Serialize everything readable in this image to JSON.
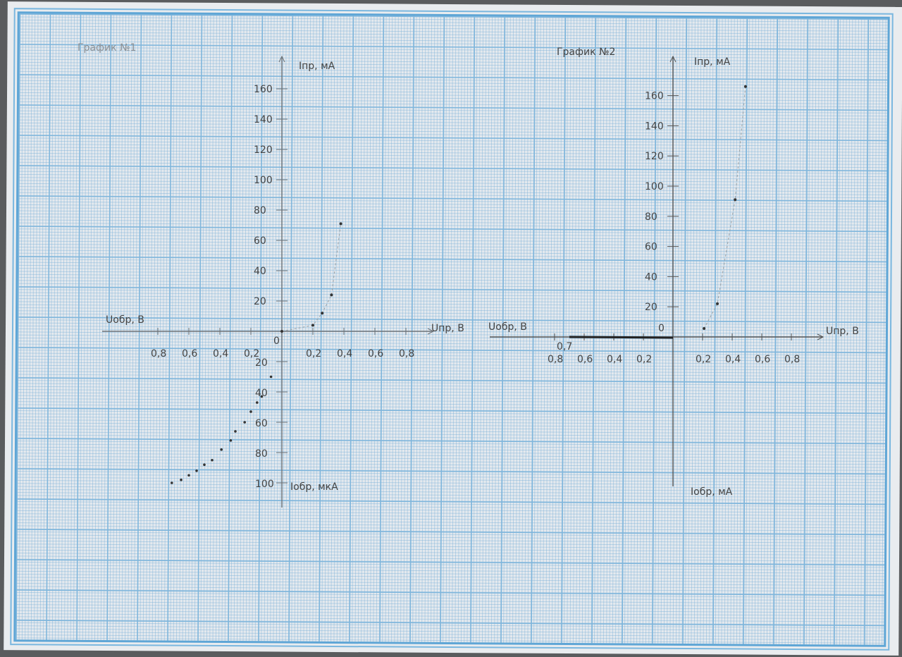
{
  "chart_data": [
    {
      "type": "scatter",
      "title": "График №1",
      "xlabel_pos": "Uпр, В",
      "xlabel_neg": "Uобр, В",
      "ylabel_pos": "Iпр, мА",
      "ylabel_neg": "Iобр, мкА",
      "x_ticks_pos": [
        "0,2",
        "0,4",
        "0,6",
        "0,8"
      ],
      "x_ticks_neg": [
        "0,8",
        "0,6",
        "0,4",
        "0,2"
      ],
      "y_ticks_pos": [
        "20",
        "40",
        "60",
        "80",
        "100",
        "120",
        "140",
        "160"
      ],
      "y_ticks_neg": [
        "20",
        "40",
        "60",
        "80",
        "100"
      ],
      "origin_label": "0",
      "xlim": [
        -0.8,
        0.8
      ],
      "ylim": [
        -100,
        160
      ],
      "forward": {
        "x": [
          0,
          0.2,
          0.26,
          0.32,
          0.38
        ],
        "y": [
          0,
          4,
          12,
          24,
          71
        ]
      },
      "reverse": {
        "x": [
          -0.07,
          -0.13,
          -0.16,
          -0.2,
          -0.24,
          -0.3,
          -0.33,
          -0.39,
          -0.45,
          -0.5,
          -0.55,
          -0.6,
          -0.65,
          -0.71
        ],
        "y": [
          -30,
          -43,
          -47,
          -53,
          -60,
          -66,
          -72,
          -78,
          -85,
          -88,
          -92,
          -95,
          -98,
          -100
        ]
      }
    },
    {
      "type": "scatter",
      "title": "График №2",
      "xlabel_pos": "Uпр, В",
      "xlabel_neg": "Uобр, В",
      "ylabel_pos": "Iпр, мА",
      "ylabel_neg": "Iобр, мА",
      "x_ticks_pos": [
        "0,2",
        "0,4",
        "0,6",
        "0,8"
      ],
      "x_ticks_neg": [
        "0,8",
        "0,6",
        "0,4",
        "0,2"
      ],
      "x_tick_extra": "0,7",
      "y_ticks_pos": [
        "20",
        "40",
        "60",
        "80",
        "100",
        "120",
        "140",
        "160"
      ],
      "origin_label": "0",
      "xlim": [
        -0.8,
        0.8
      ],
      "ylim": [
        0,
        170
      ],
      "forward": {
        "x": [
          0.21,
          0.3,
          0.42,
          0.49
        ],
        "y": [
          5.6,
          22,
          91,
          166
        ]
      },
      "reverse": {
        "x": [
          0,
          -0.7
        ],
        "y": [
          0,
          0
        ]
      }
    }
  ]
}
